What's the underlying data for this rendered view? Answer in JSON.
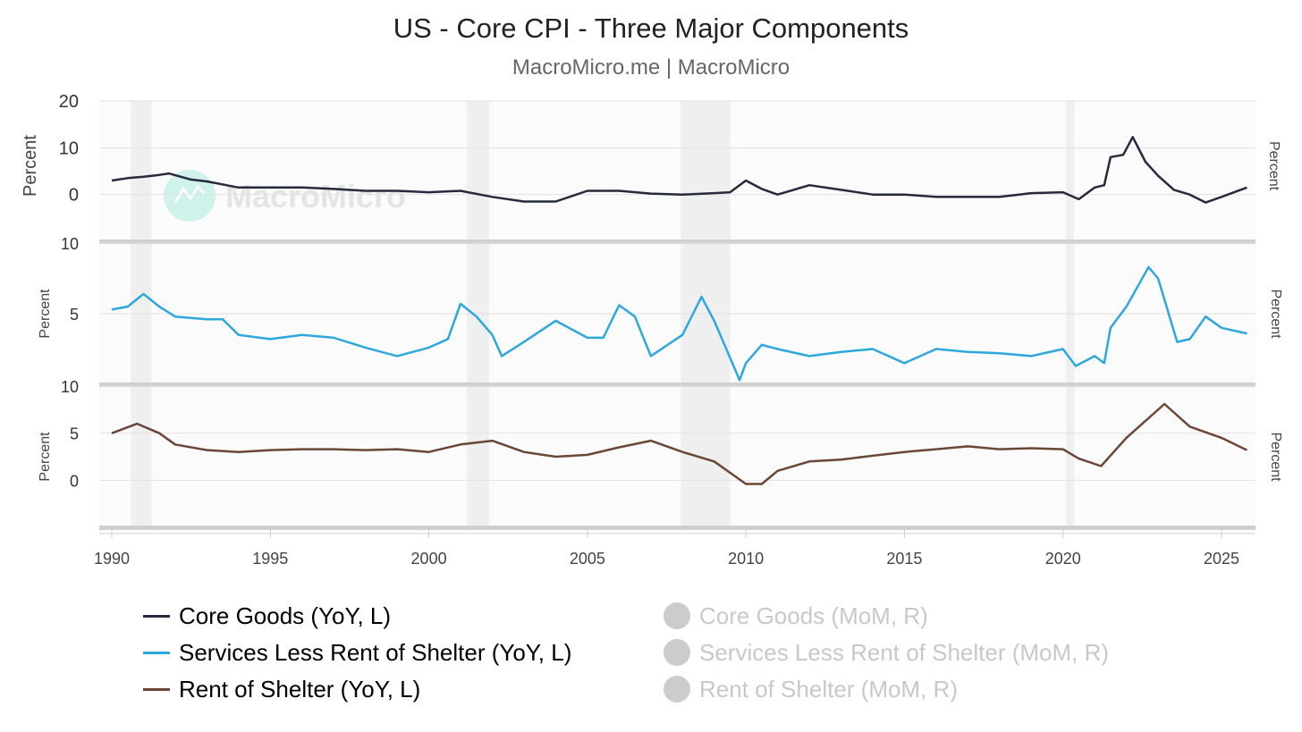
{
  "chart_data": {
    "type": "line",
    "title": "US - Core CPI - Three Major Components",
    "subtitle": "MacroMicro.me | MacroMicro",
    "watermark": "MacroMicro",
    "xlabel": "",
    "x_ticks": [
      "1990",
      "1995",
      "2000",
      "2005",
      "2010",
      "2015",
      "2020",
      "2025"
    ],
    "xlim": [
      1990,
      2026
    ],
    "recessions": [
      [
        1990.6,
        1991.25
      ],
      [
        2001.2,
        2001.9
      ],
      [
        2007.95,
        2009.5
      ],
      [
        2020.1,
        2020.35
      ]
    ],
    "panels": [
      {
        "ylabel_left": "Percent",
        "ylabel_right": "Percent",
        "ylim": [
          -10,
          20
        ],
        "y_ticks": [
          "20",
          "10",
          "0"
        ],
        "y_tick_values": [
          20,
          10,
          0
        ],
        "top_label": ""
      },
      {
        "ylabel_left": "Percent",
        "ylabel_right": "Percent",
        "ylim": [
          0,
          10
        ],
        "y_ticks": [
          "10",
          "5"
        ],
        "y_tick_values": [
          10,
          5
        ]
      },
      {
        "ylabel_left": "Percent",
        "ylabel_right": "Percent",
        "ylim": [
          -5,
          10
        ],
        "y_ticks": [
          "10",
          "5",
          "0"
        ],
        "y_tick_values": [
          10,
          5,
          0
        ]
      }
    ],
    "series": [
      {
        "name": "Core Goods (YoY, L)",
        "panel": 0,
        "color": "#262a3d",
        "visible": true,
        "x": [
          1990,
          1990.5,
          1991,
          1991.5,
          1991.8,
          1992.5,
          1993,
          1994,
          1995,
          1996,
          1997,
          1998,
          1999,
          2000,
          2001,
          2002,
          2003,
          2004,
          2005,
          2006,
          2007,
          2008,
          2009,
          2009.5,
          2010,
          2010.5,
          2011,
          2012,
          2013,
          2014,
          2015,
          2016,
          2017,
          2018,
          2019,
          2020,
          2020.5,
          2021,
          2021.3,
          2021.5,
          2021.9,
          2022.2,
          2022.6,
          2023,
          2023.5,
          2024,
          2024.5,
          2025,
          2025.8
        ],
        "y": [
          3.0,
          3.5,
          3.8,
          4.2,
          4.5,
          3.2,
          2.8,
          1.5,
          1.5,
          1.5,
          1.2,
          0.8,
          0.8,
          0.5,
          0.8,
          -0.5,
          -1.5,
          -1.5,
          0.8,
          0.8,
          0.2,
          0.0,
          0.3,
          0.5,
          3.0,
          1.2,
          0.0,
          2.0,
          1.0,
          0.0,
          0.0,
          -0.5,
          -0.5,
          -0.5,
          0.3,
          0.5,
          -1.0,
          1.5,
          2.0,
          8.0,
          8.5,
          12.3,
          7.0,
          4.0,
          1.0,
          0.0,
          -1.7,
          -0.5,
          1.5
        ]
      },
      {
        "name": "Services Less Rent of Shelter (YoY, L)",
        "panel": 1,
        "color": "#2ea7dc",
        "visible": true,
        "x": [
          1990,
          1990.5,
          1991,
          1991.5,
          1992,
          1993,
          1993.5,
          1994,
          1995,
          1996,
          1997,
          1998,
          1999,
          2000,
          2000.6,
          2001,
          2001.5,
          2002,
          2002.3,
          2003,
          2004,
          2005,
          2005.5,
          2006,
          2006.5,
          2007,
          2008,
          2008.6,
          2009,
          2009.8,
          2010,
          2010.5,
          2011,
          2012,
          2013,
          2014,
          2015,
          2016,
          2017,
          2018,
          2019,
          2020,
          2020.4,
          2021,
          2021.3,
          2021.5,
          2022,
          2022.7,
          2023,
          2023.6,
          2024,
          2024.5,
          2025,
          2025.8
        ],
        "y": [
          5.3,
          5.5,
          6.4,
          5.5,
          4.8,
          4.6,
          4.6,
          3.5,
          3.2,
          3.5,
          3.3,
          2.6,
          2.0,
          2.6,
          3.2,
          5.7,
          4.8,
          3.5,
          2.0,
          3.0,
          4.5,
          3.3,
          3.3,
          5.6,
          4.8,
          2.0,
          3.5,
          6.2,
          4.5,
          0.3,
          1.5,
          2.8,
          2.5,
          2.0,
          2.3,
          2.5,
          1.5,
          2.5,
          2.3,
          2.2,
          2.0,
          2.5,
          1.3,
          2.0,
          1.5,
          4.0,
          5.5,
          8.3,
          7.5,
          3.0,
          3.2,
          4.8,
          4.0,
          3.6
        ]
      },
      {
        "name": "Rent of Shelter (YoY, L)",
        "panel": 2,
        "color": "#6b4637",
        "visible": true,
        "x": [
          1990,
          1990.8,
          1991.5,
          1992,
          1993,
          1994,
          1995,
          1996,
          1997,
          1998,
          1999,
          2000,
          2001,
          2002,
          2003,
          2004,
          2005,
          2006,
          2007,
          2008,
          2009,
          2009.5,
          2010,
          2010.5,
          2011,
          2012,
          2013,
          2014,
          2015,
          2016,
          2017,
          2018,
          2019,
          2020,
          2020.5,
          2021.2,
          2022,
          2023.2,
          2024,
          2025,
          2025.8
        ],
        "y": [
          5.0,
          6.0,
          5.0,
          3.8,
          3.2,
          3.0,
          3.2,
          3.3,
          3.3,
          3.2,
          3.3,
          3.0,
          3.8,
          4.2,
          3.0,
          2.5,
          2.7,
          3.5,
          4.2,
          3.0,
          2.0,
          0.8,
          -0.4,
          -0.4,
          1.0,
          2.0,
          2.2,
          2.6,
          3.0,
          3.3,
          3.6,
          3.3,
          3.4,
          3.3,
          2.3,
          1.5,
          4.5,
          8.1,
          5.7,
          4.5,
          3.2
        ]
      },
      {
        "name": "Core Goods (MoM, R)",
        "visible": false,
        "color": "#cccccc"
      },
      {
        "name": "Services Less Rent of Shelter (MoM, R)",
        "visible": false,
        "color": "#cccccc"
      },
      {
        "name": "Rent of Shelter (MoM, R)",
        "visible": false,
        "color": "#cccccc"
      }
    ]
  }
}
